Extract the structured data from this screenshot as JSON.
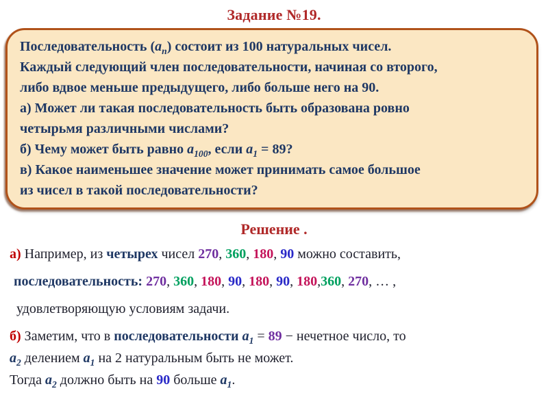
{
  "page": {
    "title": "Задание №19.",
    "solution_heading": "Решение ."
  },
  "colors": {
    "heading_red": "#b02929",
    "box_fill": "#fbe7c3",
    "box_border": "#b0521a",
    "navy_text": "#1f3864",
    "body_text": "#20212e",
    "marker_red": "#c00000",
    "num_purple": "#7030a0",
    "num_green": "#00a05f",
    "num_crimson": "#c4145a",
    "num_blue": "#2929c8"
  },
  "problem": {
    "lines": [
      [
        {
          "t": "Последовательность ("
        },
        {
          "t": "a",
          "i": 1,
          "sub": "n"
        },
        {
          "t": ") состоит из 100 натуральных чисел."
        }
      ],
      [
        {
          "t": "Каждый следующий член последовательности, начиная со второго,"
        }
      ],
      [
        {
          "t": "либо вдвое меньше предыдущего, либо больше него на 90."
        }
      ],
      [
        {
          "t": "а) Может ли такая последовательность быть образована ровно"
        }
      ],
      [
        {
          "t": "четырьмя различными числами?"
        }
      ],
      [
        {
          "t": "б) Чему может быть равно "
        },
        {
          "t": "a",
          "i": 1,
          "sub": "100"
        },
        {
          "t": ", если "
        },
        {
          "t": "a",
          "i": 1,
          "sub": "1"
        },
        {
          "t": " = 89?"
        }
      ],
      [
        {
          "t": "в) Какое наименьшее значение может принимать самое большое"
        }
      ],
      [
        {
          "t": " из чисел в такой последовательности?"
        }
      ]
    ]
  },
  "solution": {
    "lines": [
      [
        {
          "t": "а)",
          "c": "red"
        },
        {
          "t": " Например, из "
        },
        {
          "t": "четырех",
          "c": "navy"
        },
        {
          "t": " чисел "
        },
        {
          "t": "270",
          "c": "purple"
        },
        {
          "t": ", "
        },
        {
          "t": "360",
          "c": "green"
        },
        {
          "t": ", "
        },
        {
          "t": "180",
          "c": "crimson"
        },
        {
          "t": ", "
        },
        {
          "t": "90",
          "c": "blue"
        },
        {
          "t": "  можно составить,"
        }
      ],
      [
        {
          "t": "последовательность:",
          "c": "navy"
        },
        {
          "t": "   "
        },
        {
          "t": "270",
          "c": "purple"
        },
        {
          "t": ", "
        },
        {
          "t": "360",
          "c": "green"
        },
        {
          "t": ", "
        },
        {
          "t": "180",
          "c": "crimson"
        },
        {
          "t": ", "
        },
        {
          "t": "90",
          "c": "blue"
        },
        {
          "t": ", "
        },
        {
          "t": "180",
          "c": "crimson"
        },
        {
          "t": ", "
        },
        {
          "t": "90",
          "c": "blue"
        },
        {
          "t": ", "
        },
        {
          "t": "180",
          "c": "crimson"
        },
        {
          "t": ","
        },
        {
          "t": "360",
          "c": "green"
        },
        {
          "t": ", "
        },
        {
          "t": "270",
          "c": "purple"
        },
        {
          "t": ", … ,"
        }
      ],
      [
        {
          "t": "удовлетворяющую условиям задачи."
        }
      ],
      [
        {
          "t": "б)",
          "c": "red"
        },
        {
          "t": " Заметим, что в  "
        },
        {
          "t": "последовательности ",
          "c": "navy"
        },
        {
          "t": "a",
          "c": "navy",
          "i": 1,
          "sub": "1"
        },
        {
          "t": " = "
        },
        {
          "t": "89",
          "c": "purple"
        },
        {
          "t": " − нечетное число, то"
        }
      ],
      [
        {
          "t": "a",
          "c": "navy",
          "i": 1,
          "sub": "2"
        },
        {
          "t": " делением "
        },
        {
          "t": "a",
          "c": "navy",
          "i": 1,
          "sub": "1"
        },
        {
          "t": " на 2 натуральным быть не может."
        }
      ],
      [
        {
          "t": "Тогда "
        },
        {
          "t": "a",
          "c": "navy",
          "i": 1,
          "sub": "2"
        },
        {
          "t": " должно быть на "
        },
        {
          "t": "90",
          "c": "blue"
        },
        {
          "t": " больше "
        },
        {
          "t": "a",
          "c": "navy",
          "i": 1,
          "sub": "1"
        },
        {
          "t": "."
        }
      ]
    ]
  }
}
